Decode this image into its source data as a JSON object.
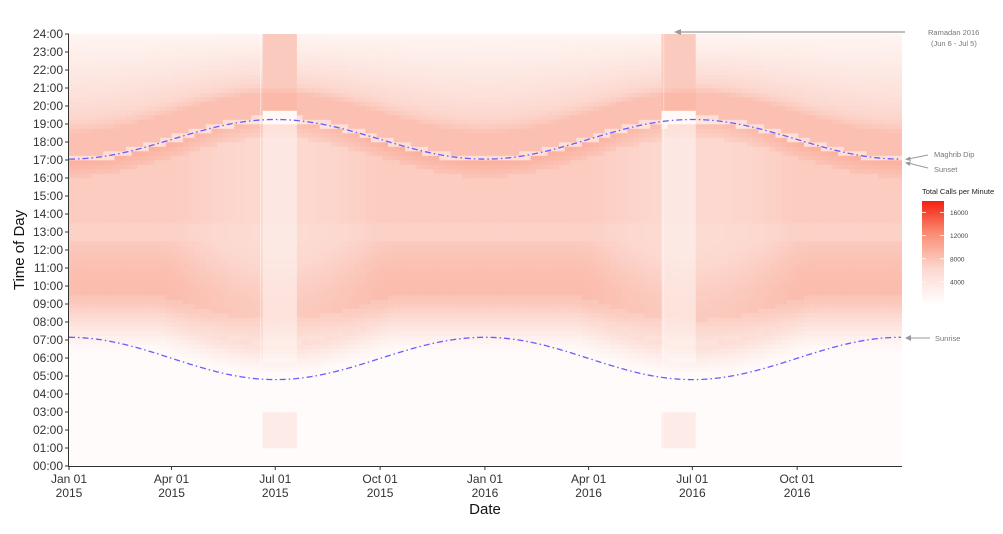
{
  "chart_data": {
    "type": "heatmap",
    "xlabel": "Date",
    "ylabel": "Time of Day",
    "x_range": [
      "2015-01-01",
      "2016-12-31"
    ],
    "y_range": [
      0,
      24
    ],
    "x_ticks": [
      {
        "date": "2015-01-01",
        "line1": "Jan 01",
        "line2": "2015"
      },
      {
        "date": "2015-04-01",
        "line1": "Apr 01",
        "line2": "2015"
      },
      {
        "date": "2015-07-01",
        "line1": "Jul 01",
        "line2": "2015"
      },
      {
        "date": "2015-10-01",
        "line1": "Oct 01",
        "line2": "2015"
      },
      {
        "date": "2016-01-01",
        "line1": "Jan 01",
        "line2": "2016"
      },
      {
        "date": "2016-04-01",
        "line1": "Apr 01",
        "line2": "2016"
      },
      {
        "date": "2016-07-01",
        "line1": "Jul 01",
        "line2": "2016"
      },
      {
        "date": "2016-10-01",
        "line1": "Oct 01",
        "line2": "2016"
      }
    ],
    "y_ticks": [
      "00:00",
      "01:00",
      "02:00",
      "03:00",
      "04:00",
      "05:00",
      "06:00",
      "07:00",
      "08:00",
      "09:00",
      "10:00",
      "11:00",
      "12:00",
      "13:00",
      "14:00",
      "15:00",
      "16:00",
      "17:00",
      "18:00",
      "19:00",
      "20:00",
      "21:00",
      "22:00",
      "23:00",
      "24:00"
    ],
    "legend": {
      "title": "Total Calls per Minute",
      "ticks": [
        4000,
        8000,
        12000,
        16000
      ],
      "range": [
        0,
        18000
      ],
      "color_low": "#ffffff",
      "color_high": "#f52010",
      "placement": "right"
    },
    "ramadan_periods": [
      {
        "start": "2015-06-18",
        "end": "2015-07-17"
      },
      {
        "start": "2016-06-06",
        "end": "2016-07-05"
      }
    ],
    "sunset_curve": {
      "label": "Sunset",
      "color": "#6a5cff",
      "points": [
        {
          "date": "2015-01-01",
          "hour": 17.05
        },
        {
          "date": "2015-07-01",
          "hour": 19.25
        },
        {
          "date": "2016-01-01",
          "hour": 17.05
        },
        {
          "date": "2016-07-01",
          "hour": 19.25
        },
        {
          "date": "2016-12-31",
          "hour": 17.05
        }
      ]
    },
    "sunrise_curve": {
      "label": "Sunrise",
      "color": "#6a5cff",
      "points": [
        {
          "date": "2015-01-01",
          "hour": 7.15
        },
        {
          "date": "2015-07-01",
          "hour": 4.8
        },
        {
          "date": "2016-01-01",
          "hour": 7.15
        },
        {
          "date": "2016-07-01",
          "hour": 4.8
        },
        {
          "date": "2016-12-31",
          "hour": 7.15
        }
      ]
    },
    "annotations": {
      "ramadan_line1": "Ramadan 2016",
      "ramadan_line2": "(Jun 6 - Jul 5)",
      "maghrib": "Maghrib Dip",
      "sunset": "Sunset",
      "sunrise": "Sunrise"
    }
  }
}
